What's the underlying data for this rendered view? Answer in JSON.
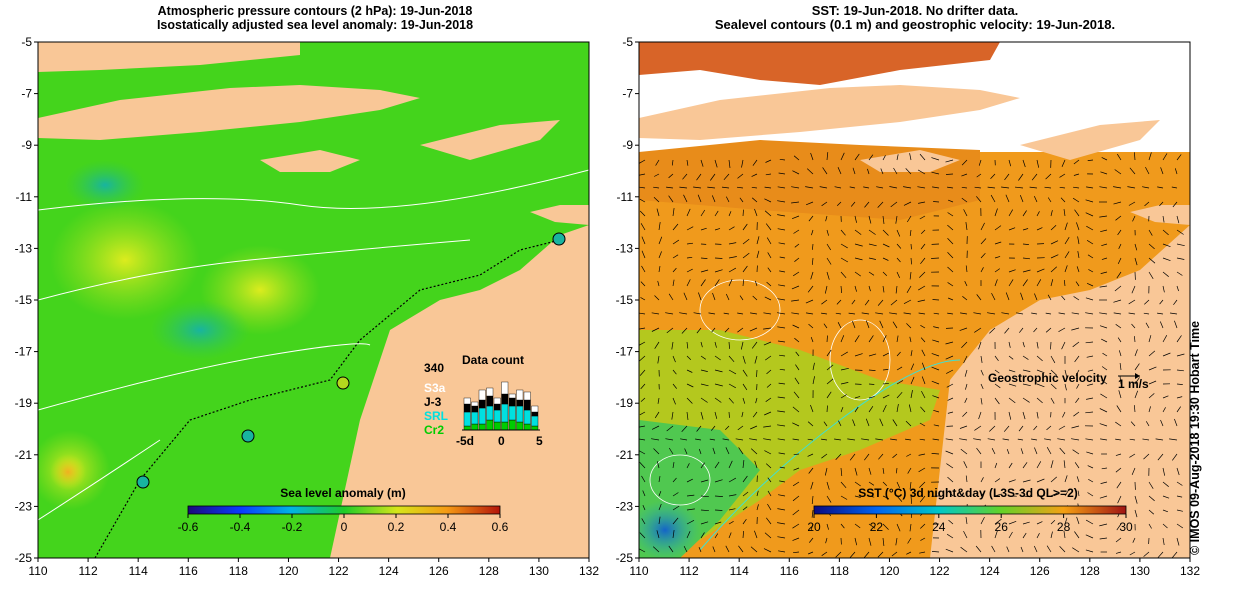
{
  "left_panel": {
    "title_line1": "Atmospheric pressure contours (2 hPa): 19-Jun-2018",
    "title_line2": "Isostatically adjusted sea level anomaly: 19-Jun-2018",
    "colorbar_label": "Sea level anomaly (m)",
    "colorbar_ticks": [
      "-0.6",
      "-0.4",
      "-0.2",
      "0",
      "0.2",
      "0.4",
      "0.6"
    ],
    "data_count": {
      "title": "Data count",
      "max_label": "340",
      "series": [
        {
          "label": "S3a",
          "color": "#ffffff"
        },
        {
          "label": "J-3",
          "color": "#000000"
        },
        {
          "label": "SRL",
          "color": "#00e0e0"
        },
        {
          "label": "Cr2",
          "color": "#00cc00"
        }
      ],
      "x_ticks": [
        "-5d",
        "0",
        "5"
      ]
    }
  },
  "right_panel": {
    "title_line1": "SST: 19-Jun-2018. No drifter data.",
    "title_line2": "Sealevel contours (0.1 m) and geostrophic velocity: 19-Jun-2018.",
    "velocity_label": "Geostrophic velocity",
    "velocity_scale": "1 m/s",
    "colorbar_label": "SST (°C) 3d night&day (L3S-3d QL>=2)",
    "colorbar_ticks": [
      "20",
      "22",
      "24",
      "26",
      "28",
      "30"
    ]
  },
  "axes": {
    "x_ticks": [
      "110",
      "112",
      "114",
      "116",
      "118",
      "120",
      "122",
      "124",
      "126",
      "128",
      "130",
      "132"
    ],
    "y_ticks": [
      "-5",
      "-7",
      "-9",
      "-11",
      "-13",
      "-15",
      "-17",
      "-19",
      "-21",
      "-23",
      "-25"
    ],
    "lon_range": [
      110,
      132
    ],
    "lat_range": [
      -25,
      -5
    ]
  },
  "credit": "© IMOS 09-Aug-2018 19:30 Hobart Time",
  "colors": {
    "land": "#f9c797",
    "sla_ocean": "#44d41c",
    "sst_ocean": "#f09a1c",
    "cloud": "#ffffff"
  }
}
